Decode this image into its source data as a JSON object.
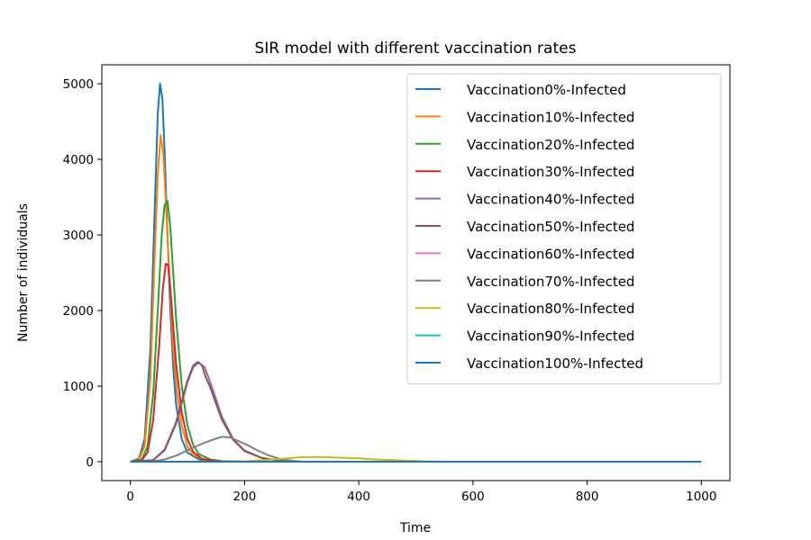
{
  "chart_data": {
    "type": "line",
    "title": "SIR model with different vaccination rates",
    "xlabel": "Time",
    "ylabel": "Number of individuals",
    "xlim": [
      -50,
      1050
    ],
    "ylim": [
      -250,
      5250
    ],
    "xticks": [
      0,
      200,
      400,
      600,
      800,
      1000
    ],
    "yticks": [
      0,
      1000,
      2000,
      3000,
      4000,
      5000
    ],
    "grid": false,
    "legend_position": "top-right",
    "series": [
      {
        "name": "Vaccination0%-Infected",
        "color": "#1f77b4",
        "x": [
          0,
          15,
          25,
          35,
          42,
          48,
          52,
          56,
          60,
          65,
          70,
          75,
          80,
          90,
          100,
          120,
          140,
          160,
          200,
          1000
        ],
        "y": [
          0,
          40,
          300,
          1500,
          3200,
          4600,
          5000,
          4800,
          4100,
          3000,
          2000,
          1250,
          760,
          300,
          120,
          30,
          10,
          5,
          0,
          0
        ]
      },
      {
        "name": "Vaccination10%-Infected",
        "color": "#ff7f0e",
        "x": [
          0,
          15,
          25,
          35,
          42,
          48,
          53,
          58,
          63,
          68,
          75,
          82,
          90,
          100,
          110,
          130,
          160,
          200,
          1000
        ],
        "y": [
          0,
          30,
          200,
          1100,
          2600,
          3800,
          4320,
          4050,
          3300,
          2500,
          1500,
          900,
          480,
          200,
          90,
          25,
          5,
          0,
          0
        ]
      },
      {
        "name": "Vaccination20%-Infected",
        "color": "#2ca02c",
        "x": [
          0,
          20,
          30,
          40,
          48,
          55,
          60,
          65,
          70,
          75,
          80,
          90,
          100,
          110,
          120,
          140,
          160,
          200,
          1000
        ],
        "y": [
          0,
          30,
          200,
          900,
          2000,
          3000,
          3400,
          3450,
          3100,
          2500,
          1900,
          1000,
          480,
          220,
          100,
          30,
          10,
          0,
          0
        ]
      },
      {
        "name": "Vaccination30%-Infected",
        "color": "#d62728",
        "x": [
          0,
          20,
          30,
          40,
          50,
          57,
          62,
          66,
          70,
          75,
          80,
          90,
          100,
          110,
          125,
          140,
          160,
          200,
          1000
        ],
        "y": [
          0,
          20,
          120,
          550,
          1500,
          2300,
          2620,
          2600,
          2300,
          1800,
          1300,
          650,
          300,
          130,
          40,
          15,
          5,
          0,
          0
        ]
      },
      {
        "name": "Vaccination40%-Infected",
        "color": "#9467bd",
        "x": [
          0,
          40,
          60,
          80,
          100,
          110,
          120,
          130,
          140,
          160,
          180,
          200,
          230,
          260,
          300,
          1000
        ],
        "y": [
          0,
          20,
          150,
          500,
          1050,
          1250,
          1310,
          1250,
          1050,
          600,
          300,
          150,
          50,
          15,
          0,
          0
        ]
      },
      {
        "name": "Vaccination50%-Infected",
        "color": "#8c564b",
        "x": [
          0,
          40,
          60,
          80,
          100,
          110,
          118,
          125,
          132,
          140,
          160,
          180,
          200,
          230,
          260,
          300,
          1000
        ],
        "y": [
          0,
          20,
          160,
          520,
          1070,
          1270,
          1320,
          1280,
          1120,
          980,
          560,
          290,
          140,
          50,
          15,
          0,
          0
        ]
      },
      {
        "name": "Vaccination60%-Infected",
        "color": "#e377c2",
        "x": [
          0,
          1000
        ],
        "y": [
          0,
          0
        ]
      },
      {
        "name": "Vaccination70%-Infected",
        "color": "#7f7f7f",
        "x": [
          0,
          40,
          60,
          80,
          100,
          120,
          140,
          160,
          175,
          190,
          205,
          220,
          240,
          260,
          280,
          300,
          1000
        ],
        "y": [
          0,
          5,
          30,
          80,
          150,
          220,
          280,
          330,
          320,
          270,
          220,
          160,
          90,
          40,
          15,
          0,
          0
        ]
      },
      {
        "name": "Vaccination80%-Infected",
        "color": "#bcbd22",
        "x": [
          0,
          150,
          200,
          250,
          300,
          330,
          360,
          400,
          430,
          460,
          490,
          520,
          560,
          1000
        ],
        "y": [
          0,
          0,
          5,
          30,
          60,
          62,
          55,
          45,
          30,
          20,
          12,
          5,
          0,
          0
        ]
      },
      {
        "name": "Vaccination90%-Infected",
        "color": "#17becf",
        "x": [
          0,
          1000
        ],
        "y": [
          0,
          0
        ]
      },
      {
        "name": "Vaccination100%-Infected",
        "color": "#1f77b4",
        "x": [
          0,
          1000
        ],
        "y": [
          0,
          0
        ]
      }
    ]
  }
}
